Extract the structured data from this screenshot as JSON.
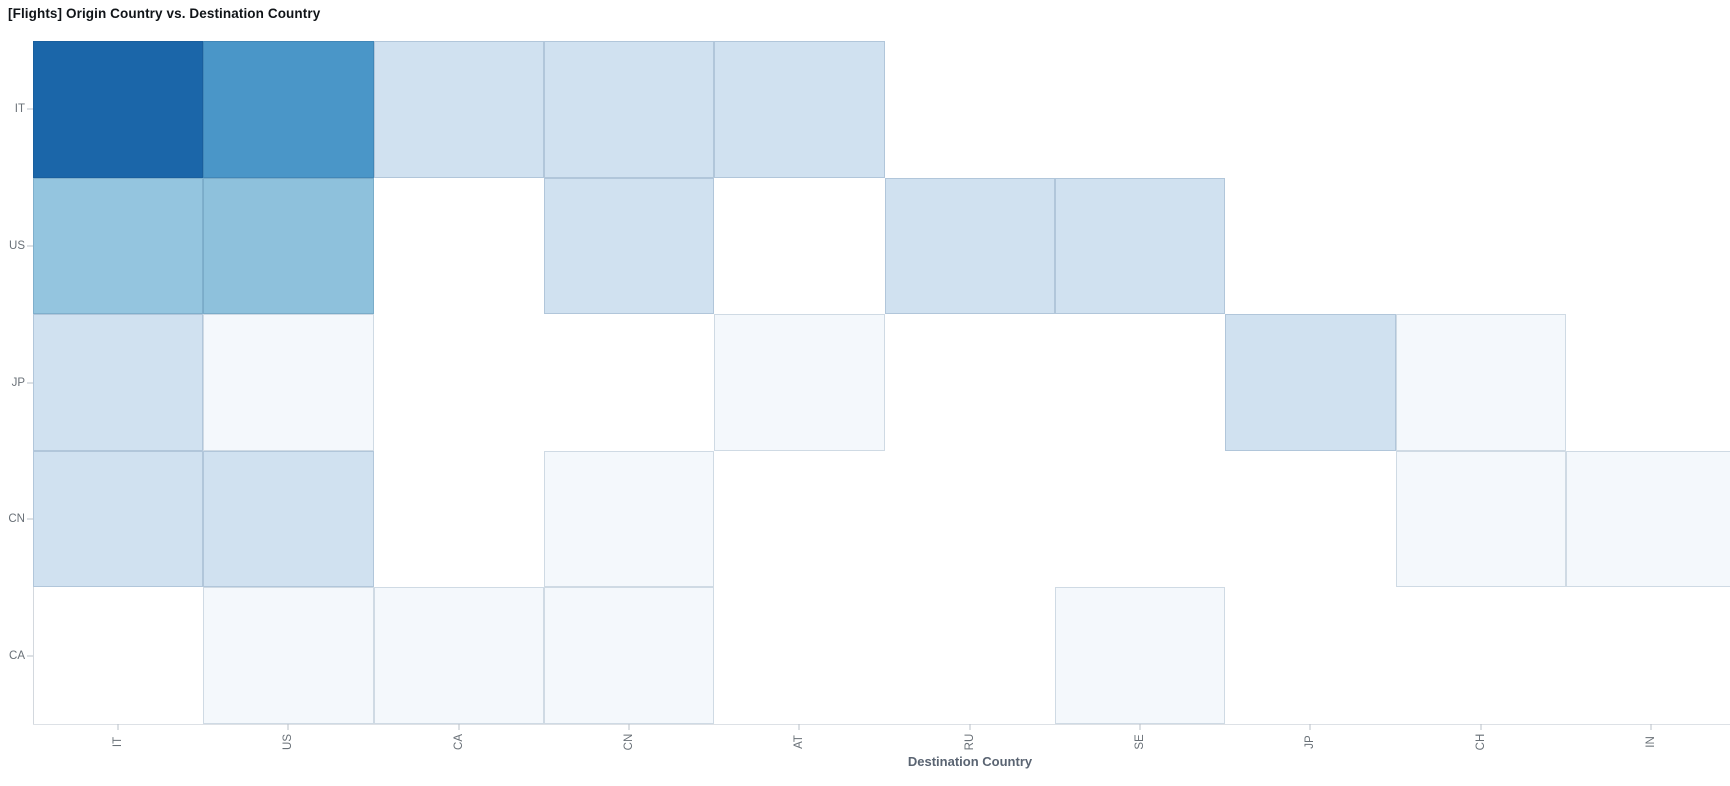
{
  "page": {
    "background": "#ffffff"
  },
  "chart_data": {
    "type": "heatmap",
    "title": "[Flights] Origin Country vs. Destination Country",
    "xlabel": "Destination Country",
    "ylabel": "",
    "x_categories": [
      "IT",
      "US",
      "CA",
      "CN",
      "AT",
      "RU",
      "SE",
      "JP",
      "CH",
      "IN"
    ],
    "y_categories": [
      "IT",
      "US",
      "JP",
      "CN",
      "CA"
    ],
    "legend_position": "none",
    "grid": "cell-borders-only",
    "axis_label_color": "#697077",
    "color_scale": {
      "name": "blues",
      "empty_cell": null,
      "levels_low_to_high": [
        "#f4f8fc",
        "#d0e1f0",
        "#8fc1dc",
        "#4a96c8",
        "#1b66a9"
      ]
    },
    "cell_colors_by_row": [
      [
        "#1b66a9",
        "#4a96c8",
        "#d0e1f0",
        "#d0e1f0",
        "#d0e1f0",
        null,
        null,
        null,
        null,
        null
      ],
      [
        "#94c5df",
        "#8ec1dc",
        null,
        "#d0e1f0",
        null,
        "#d0e1f0",
        "#d0e1f0",
        null,
        null,
        null
      ],
      [
        "#d0e1f0",
        "#f4f8fc",
        null,
        null,
        "#f4f8fc",
        null,
        null,
        "#d0e1f0",
        "#f4f8fc",
        null
      ],
      [
        "#d0e1f0",
        "#d0e1f0",
        null,
        "#f4f8fc",
        null,
        null,
        null,
        null,
        "#f4f8fc",
        "#f4f8fc"
      ],
      [
        null,
        "#f4f8fc",
        "#f4f8fc",
        "#f4f8fc",
        null,
        null,
        "#f4f8fc",
        null,
        null,
        null
      ]
    ]
  }
}
